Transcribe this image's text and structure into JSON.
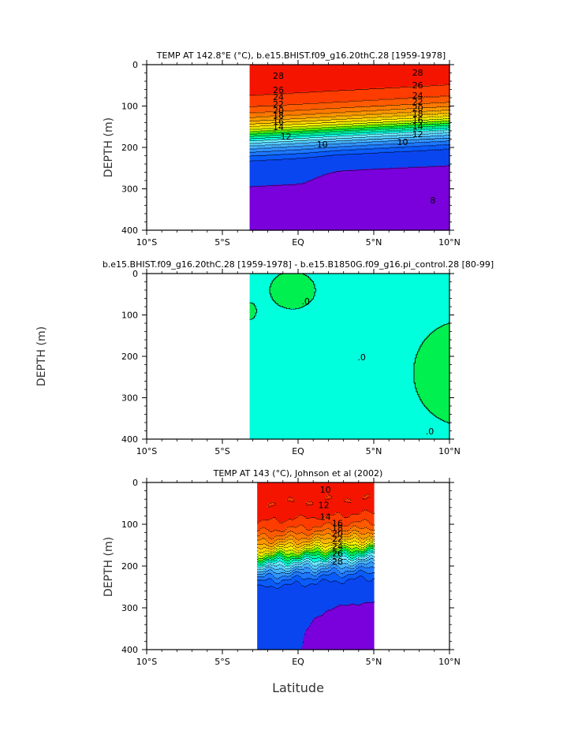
{
  "figure": {
    "xlabel": "Latitude"
  },
  "chart_data": [
    {
      "type": "heatmap",
      "title": "TEMP AT 142.8°E (°C), b.e15.BHIST.f09_g16.20thC.28 [1959-1978]",
      "ylabel": "DEPTH (m)",
      "xlim": [
        -10,
        10
      ],
      "ylim": [
        400,
        0
      ],
      "data_xrange": [
        -3.2,
        10
      ],
      "xticks": [
        "10°S",
        "5°S",
        "EQ",
        "5°N",
        "10°N"
      ],
      "yticks": [
        "0",
        "100",
        "200",
        "300",
        "400"
      ],
      "contour_labels": [
        "28",
        "28",
        "26",
        "26",
        "24",
        "24",
        "22",
        "22",
        "20",
        "20",
        "18",
        "18",
        "16",
        "16",
        "14",
        "14",
        "12",
        "12",
        "10",
        "10",
        "8"
      ],
      "levels": [
        8,
        10,
        11,
        12,
        13,
        14,
        15,
        16,
        17,
        18,
        19,
        20,
        21,
        22,
        23,
        24,
        25,
        26,
        27,
        28,
        29
      ],
      "colors": {
        "lt8": "#7a00dc",
        "8": "#0a46f0",
        "10": "#0a5cfa",
        "11": "#1e78ff",
        "12": "#3296ff",
        "13": "#46b4ff",
        "14": "#5ad2ff",
        "15": "#6ef0ff",
        "16": "#00fadc",
        "17": "#00fa96",
        "18": "#00f03c",
        "19": "#64f500",
        "20": "#c8f500",
        "21": "#fff000",
        "22": "#ffd200",
        "23": "#ffb400",
        "24": "#ff9600",
        "25": "#ff7800",
        "26": "#ff5a00",
        "27": "#ff3c00",
        "28": "#f51400"
      }
    },
    {
      "type": "heatmap",
      "title": "b.e15.BHIST.f09_g16.20thC.28 [1959-1978] - b.e15.B1850G.f09_g16.pi_control.28 [80-99]",
      "ylabel": "DEPTH (m)",
      "xlim": [
        -10,
        10
      ],
      "ylim": [
        400,
        0
      ],
      "data_xrange": [
        -3.2,
        10
      ],
      "xticks": [
        "10°S",
        "5°S",
        "EQ",
        "5°N",
        "10°N"
      ],
      "yticks": [
        "0",
        "100",
        "200",
        "300",
        "400"
      ],
      "contour_labels": [
        "0",
        "0",
        "0"
      ],
      "colors": {
        "background": "#00ffdc",
        "positive": "#00f050"
      }
    },
    {
      "type": "heatmap",
      "title": "TEMP AT 143 (°C), Johnson et al (2002)",
      "ylabel": "DEPTH (m)",
      "xlim": [
        -10,
        10
      ],
      "ylim": [
        400,
        0
      ],
      "data_xrange": [
        -2.7,
        5
      ],
      "xticks": [
        "10°S",
        "5°S",
        "EQ",
        "5°N",
        "10°N"
      ],
      "yticks": [
        "0",
        "100",
        "200",
        "300",
        "400"
      ],
      "contour_labels": [
        "28",
        "26",
        "24",
        "22",
        "20",
        "18",
        "16",
        "14",
        "12",
        "10"
      ],
      "levels": [
        8,
        10,
        11,
        12,
        13,
        14,
        15,
        16,
        17,
        18,
        19,
        20,
        21,
        22,
        23,
        24,
        25,
        26,
        27,
        28,
        29
      ],
      "colors": {
        "lt8": "#7a00dc",
        "8": "#0a46f0",
        "10": "#0a5cfa",
        "11": "#1e78ff",
        "12": "#3296ff",
        "13": "#46b4ff",
        "14": "#5ad2ff",
        "15": "#6ef0ff",
        "16": "#00fadc",
        "17": "#00fa96",
        "18": "#00f03c",
        "19": "#64f500",
        "20": "#c8f500",
        "21": "#fff000",
        "22": "#ffd200",
        "23": "#ffb400",
        "24": "#ff9600",
        "25": "#ff7800",
        "26": "#ff5a00",
        "27": "#ff3c00",
        "28": "#f51400"
      }
    }
  ]
}
